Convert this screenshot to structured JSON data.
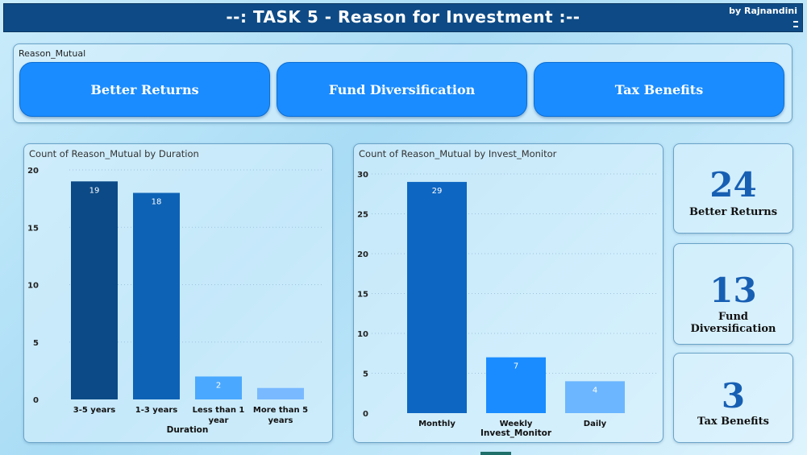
{
  "header": {
    "title": "--: TASK 5 - Reason for Investment :--",
    "author": "by Rajnandini"
  },
  "slicer": {
    "label": "Reason_Mutual",
    "options": [
      "Better Returns",
      "Fund Diversification",
      "Tax Benefits"
    ]
  },
  "charts": {
    "duration": {
      "title": "Count of Reason_Mutual by Duration"
    },
    "monitor": {
      "title": "Count of Reason_Mutual by Invest_Monitor"
    }
  },
  "kpis": [
    {
      "value": "24",
      "label": "Better Returns"
    },
    {
      "value": "13",
      "label": "Fund Diversification"
    },
    {
      "value": "3",
      "label": "Tax Benefits"
    }
  ],
  "chart_data": [
    {
      "type": "bar",
      "title": "Count of Reason_Mutual by Duration",
      "xlabel": "Duration",
      "ylabel": "",
      "categories": [
        [
          "3-5 years"
        ],
        [
          "1-3 years"
        ],
        [
          "Less than 1",
          "year"
        ],
        [
          "More than 5",
          "years"
        ]
      ],
      "values": [
        19,
        18,
        2,
        1
      ],
      "data_labels": [
        "19",
        "18",
        "2",
        ""
      ],
      "ylim": [
        0,
        20
      ],
      "yticks": [
        0,
        5,
        10,
        15,
        20
      ],
      "colors": [
        "#0b4a86",
        "#0d62b5",
        "#4aa8ff",
        "#79b9ff"
      ],
      "grid": true
    },
    {
      "type": "bar",
      "title": "Count of Reason_Mutual by Invest_Monitor",
      "xlabel": "Invest_Monitor",
      "ylabel": "",
      "categories": [
        [
          "Monthly"
        ],
        [
          "Weekly"
        ],
        [
          "Daily"
        ]
      ],
      "values": [
        29,
        7,
        4
      ],
      "data_labels": [
        "29",
        "7",
        "4"
      ],
      "ylim": [
        0,
        30
      ],
      "yticks": [
        0,
        5,
        10,
        15,
        20,
        25,
        30
      ],
      "colors": [
        "#0d66c2",
        "#1a8cff",
        "#6cb6ff"
      ],
      "grid": true
    }
  ]
}
